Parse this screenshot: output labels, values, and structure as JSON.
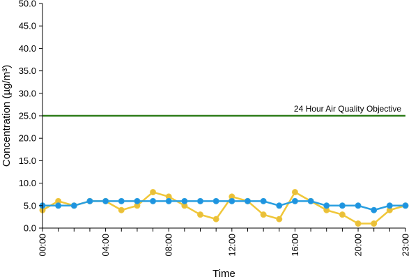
{
  "chart_data": {
    "type": "line",
    "title": "",
    "xlabel": "Time",
    "ylabel": "Concentration (µg/m³)",
    "ylim": [
      0,
      50
    ],
    "y_ticks": [
      "0.0",
      "5.0",
      "10.0",
      "15.0",
      "20.0",
      "25.0",
      "30.0",
      "35.0",
      "40.0",
      "45.0",
      "50.0"
    ],
    "x_hours": [
      0,
      1,
      2,
      3,
      4,
      5,
      6,
      7,
      8,
      9,
      10,
      11,
      12,
      13,
      14,
      15,
      16,
      17,
      18,
      19,
      20,
      21,
      22,
      23
    ],
    "x_tick_labels": [
      {
        "hour": 0,
        "label": "00:00"
      },
      {
        "hour": 4,
        "label": "04:00"
      },
      {
        "hour": 8,
        "label": "08:00"
      },
      {
        "hour": 12,
        "label": "12:00"
      },
      {
        "hour": 16,
        "label": "16:00"
      },
      {
        "hour": 20,
        "label": "20:00"
      },
      {
        "hour": 23,
        "label": "23:00"
      }
    ],
    "grid": false,
    "legend": "none",
    "reference_line": {
      "value": 25,
      "label": "24 Hour Air Quality Objective",
      "color": "#2e7d1a"
    },
    "series": [
      {
        "color": "#f0c73a",
        "marker_color": "#e9bf3a",
        "values": [
          4,
          6,
          5,
          6,
          6,
          4,
          5,
          8,
          7,
          5,
          3,
          2,
          7,
          6,
          3,
          2,
          8,
          6,
          4,
          3,
          1,
          1,
          4,
          5
        ]
      },
      {
        "color": "#2a9fe0",
        "marker_color": "#1f93e0",
        "values": [
          5,
          5,
          5,
          6,
          6,
          6,
          6,
          6,
          6,
          6,
          6,
          6,
          6,
          6,
          6,
          5,
          6,
          6,
          5,
          5,
          5,
          4,
          5,
          5
        ]
      }
    ]
  }
}
